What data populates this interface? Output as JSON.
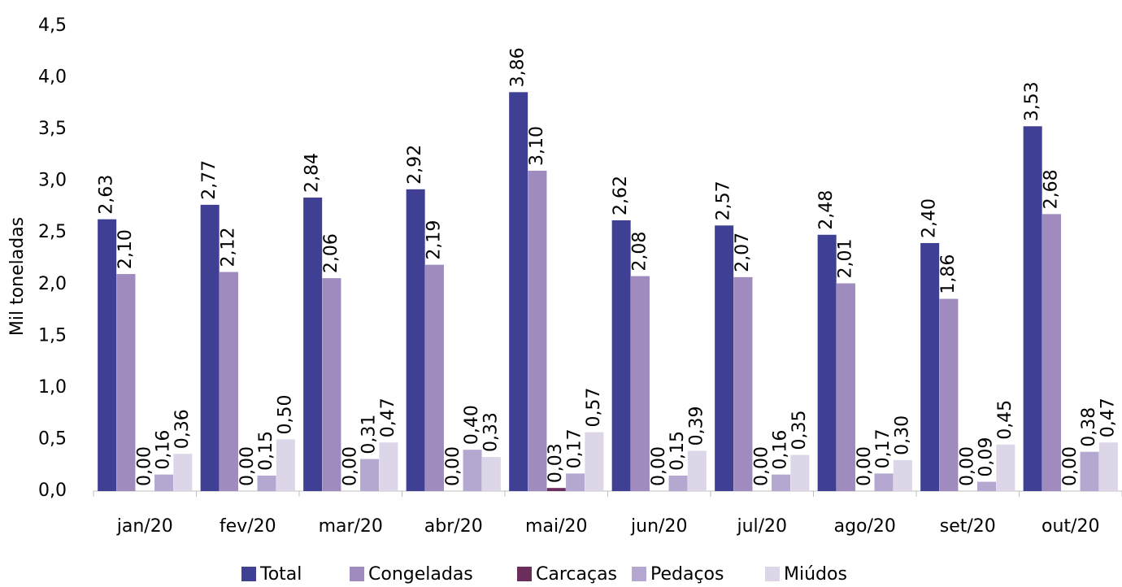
{
  "chart_data": {
    "type": "bar",
    "y_label": "Mil toneladas",
    "categories": [
      "jan/20",
      "fev/20",
      "mar/20",
      "abr/20",
      "mai/20",
      "jun/20",
      "jul/20",
      "ago/20",
      "set/20",
      "out/20"
    ],
    "series": [
      {
        "name": "Total",
        "color": "#3f3f94",
        "values": [
          2.63,
          2.77,
          2.84,
          2.92,
          3.86,
          2.62,
          2.57,
          2.48,
          2.4,
          3.53
        ],
        "value_labels": [
          "2,63",
          "2,77",
          "2,84",
          "2,92",
          "3,86",
          "2,62",
          "2,57",
          "2,48",
          "2,40",
          "3,53"
        ]
      },
      {
        "name": "Congeladas",
        "color": "#9f8bbd",
        "values": [
          2.1,
          2.12,
          2.06,
          2.19,
          3.1,
          2.08,
          2.07,
          2.01,
          1.86,
          2.68
        ],
        "value_labels": [
          "2,10",
          "2,12",
          "2,06",
          "2,19",
          "3,10",
          "2,08",
          "2,07",
          "2,01",
          "1,86",
          "2,68"
        ]
      },
      {
        "name": "Carcaças",
        "color": "#6b2d5c",
        "values": [
          0,
          0,
          0,
          0,
          0.03,
          0,
          0,
          0,
          0,
          0
        ],
        "value_labels": [
          "0,00",
          "0,00",
          "0,00",
          "0,00",
          "0,03",
          "0,00",
          "0,00",
          "0,00",
          "0,00",
          "0,00"
        ]
      },
      {
        "name": "Pedaços",
        "color": "#b4a8d1",
        "values": [
          0.16,
          0.15,
          0.31,
          0.4,
          0.17,
          0.15,
          0.16,
          0.17,
          0.09,
          0.38
        ],
        "value_labels": [
          "0,16",
          "0,15",
          "0,31",
          "0,40",
          "0,17",
          "0,15",
          "0,16",
          "0,17",
          "0,09",
          "0,38"
        ]
      },
      {
        "name": "Miúdos",
        "color": "#ddd5e8",
        "values": [
          0.36,
          0.5,
          0.47,
          0.33,
          0.57,
          0.39,
          0.35,
          0.3,
          0.45,
          0.47
        ],
        "value_labels": [
          "0,36",
          "0,50",
          "0,47",
          "0,33",
          "0,57",
          "0,39",
          "0,35",
          "0,30",
          "0,45",
          "0,47"
        ]
      }
    ],
    "ylim": [
      0,
      4.5
    ],
    "yticks": [
      {
        "value": 0,
        "label": "0,0"
      },
      {
        "value": 0.5,
        "label": "0,5"
      },
      {
        "value": 1,
        "label": "1,0"
      },
      {
        "value": 1.5,
        "label": "1,5"
      },
      {
        "value": 2,
        "label": "2,0"
      },
      {
        "value": 2.5,
        "label": "2,5"
      },
      {
        "value": 3,
        "label": "3,0"
      },
      {
        "value": 3.5,
        "label": "3,5"
      },
      {
        "value": 4,
        "label": "4,0"
      },
      {
        "value": 4.5,
        "label": "4,5"
      }
    ],
    "grid": false,
    "legend": "bottom"
  }
}
